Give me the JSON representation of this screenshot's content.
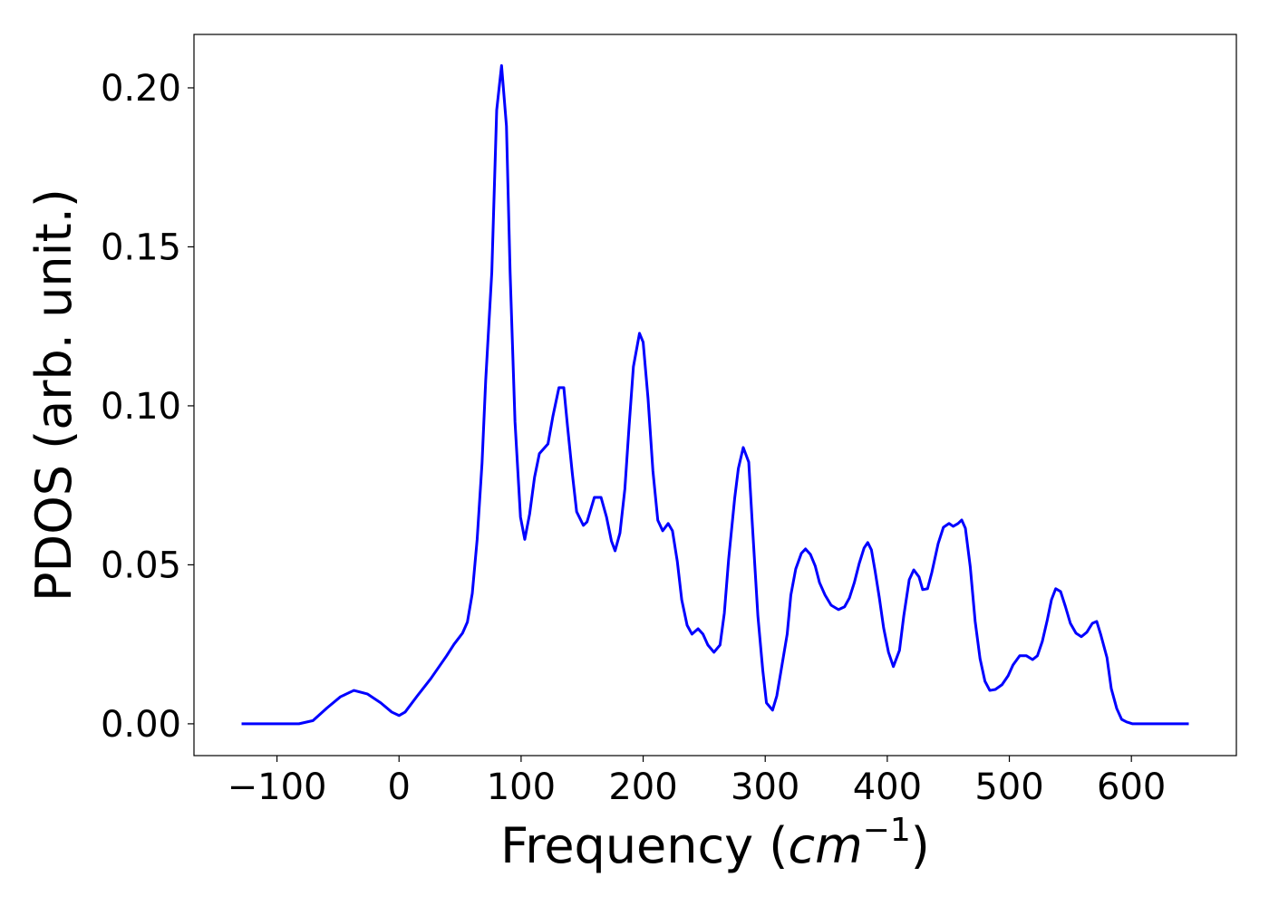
{
  "chart_data": {
    "type": "line",
    "xlabel": [
      "Frequency (",
      "cm",
      "−1",
      ")"
    ],
    "ylabel": "PDOS (arb. unit.)",
    "xlim": [
      -168,
      686
    ],
    "ylim": [
      -0.01,
      0.2168
    ],
    "xticks": [
      {
        "value": -100,
        "label": "−100"
      },
      0,
      100,
      200,
      300,
      400,
      500,
      600
    ],
    "yticks": [
      {
        "value": 0,
        "label": "0.00"
      },
      {
        "value": 0.05,
        "label": "0.05"
      },
      {
        "value": 0.1,
        "label": "0.10"
      },
      {
        "value": 0.15,
        "label": "0.15"
      },
      {
        "value": 0.2,
        "label": "0.20"
      }
    ],
    "grid": false,
    "series": [
      {
        "color": "#0000ff",
        "x": [
          -129,
          -82,
          -70.5,
          -59,
          -48,
          -37,
          -26,
          -15,
          -6,
          0,
          5,
          15,
          26,
          39,
          45,
          52,
          56,
          60,
          64,
          68,
          71,
          76,
          80,
          84,
          88,
          91,
          95,
          99.5,
          103,
          107,
          111,
          115,
          122,
          126,
          131,
          135,
          138,
          142,
          145.5,
          151,
          154,
          160,
          165.5,
          170,
          174,
          177,
          181,
          185,
          188.5,
          192,
          197,
          200,
          204,
          208,
          212,
          216,
          220.5,
          224,
          228,
          231.6,
          236,
          240,
          245,
          249,
          253,
          258,
          263,
          266.5,
          270,
          275,
          278,
          282,
          286.5,
          289.5,
          294,
          298,
          301,
          306,
          309.5,
          313,
          318,
          321,
          325,
          329.6,
          333,
          337,
          341,
          344.5,
          349,
          354,
          360,
          365,
          369,
          373,
          377,
          381,
          384,
          387,
          390,
          393.5,
          397,
          401,
          405,
          410,
          413.5,
          418,
          421.7,
          426,
          429,
          433,
          436.5,
          441.7,
          446,
          450.6,
          454,
          458,
          461,
          464,
          468,
          472,
          476,
          480,
          484,
          488.5,
          494,
          499,
          503,
          508.5,
          514,
          519,
          523,
          527,
          531,
          534.5,
          538,
          542,
          546,
          550,
          554.6,
          559,
          563.5,
          568,
          571.6,
          575,
          580,
          583.5,
          588,
          592,
          596,
          601,
          647
        ],
        "values": [
          0,
          0,
          0.001,
          0.005,
          0.0085,
          0.0105,
          0.0094,
          0.0066,
          0.0037,
          0.0026,
          0.0037,
          0.0088,
          0.0142,
          0.0214,
          0.025,
          0.0285,
          0.032,
          0.041,
          0.058,
          0.082,
          0.108,
          0.142,
          0.193,
          0.207,
          0.188,
          0.142,
          0.095,
          0.065,
          0.058,
          0.066,
          0.0775,
          0.085,
          0.088,
          0.0966,
          0.1057,
          0.1057,
          0.0937,
          0.0786,
          0.0667,
          0.0624,
          0.0635,
          0.0712,
          0.0712,
          0.065,
          0.0575,
          0.0544,
          0.06,
          0.0738,
          0.0937,
          0.1123,
          0.1228,
          0.12,
          0.1023,
          0.0795,
          0.064,
          0.0607,
          0.063,
          0.0607,
          0.051,
          0.039,
          0.031,
          0.0282,
          0.0299,
          0.0282,
          0.0248,
          0.0225,
          0.0248,
          0.0348,
          0.0516,
          0.071,
          0.0803,
          0.0869,
          0.0823,
          0.0624,
          0.0339,
          0.0168,
          0.0066,
          0.0043,
          0.0088,
          0.0168,
          0.0282,
          0.0405,
          0.0487,
          0.0536,
          0.055,
          0.0533,
          0.0496,
          0.0444,
          0.0405,
          0.0373,
          0.0359,
          0.0368,
          0.0396,
          0.0444,
          0.0504,
          0.0553,
          0.057,
          0.0547,
          0.0481,
          0.0396,
          0.0302,
          0.0225,
          0.018,
          0.0231,
          0.0339,
          0.0453,
          0.0484,
          0.0462,
          0.0422,
          0.0425,
          0.0476,
          0.0567,
          0.0618,
          0.063,
          0.0621,
          0.063,
          0.0641,
          0.0615,
          0.0493,
          0.0322,
          0.0205,
          0.0134,
          0.0105,
          0.0108,
          0.0123,
          0.0151,
          0.0185,
          0.0214,
          0.0214,
          0.0202,
          0.0214,
          0.0259,
          0.0325,
          0.039,
          0.0425,
          0.0416,
          0.0368,
          0.0316,
          0.0285,
          0.0274,
          0.0288,
          0.0316,
          0.0322,
          0.0279,
          0.0208,
          0.0111,
          0.0048,
          0.0014,
          0.0006,
          0,
          0
        ]
      }
    ]
  }
}
